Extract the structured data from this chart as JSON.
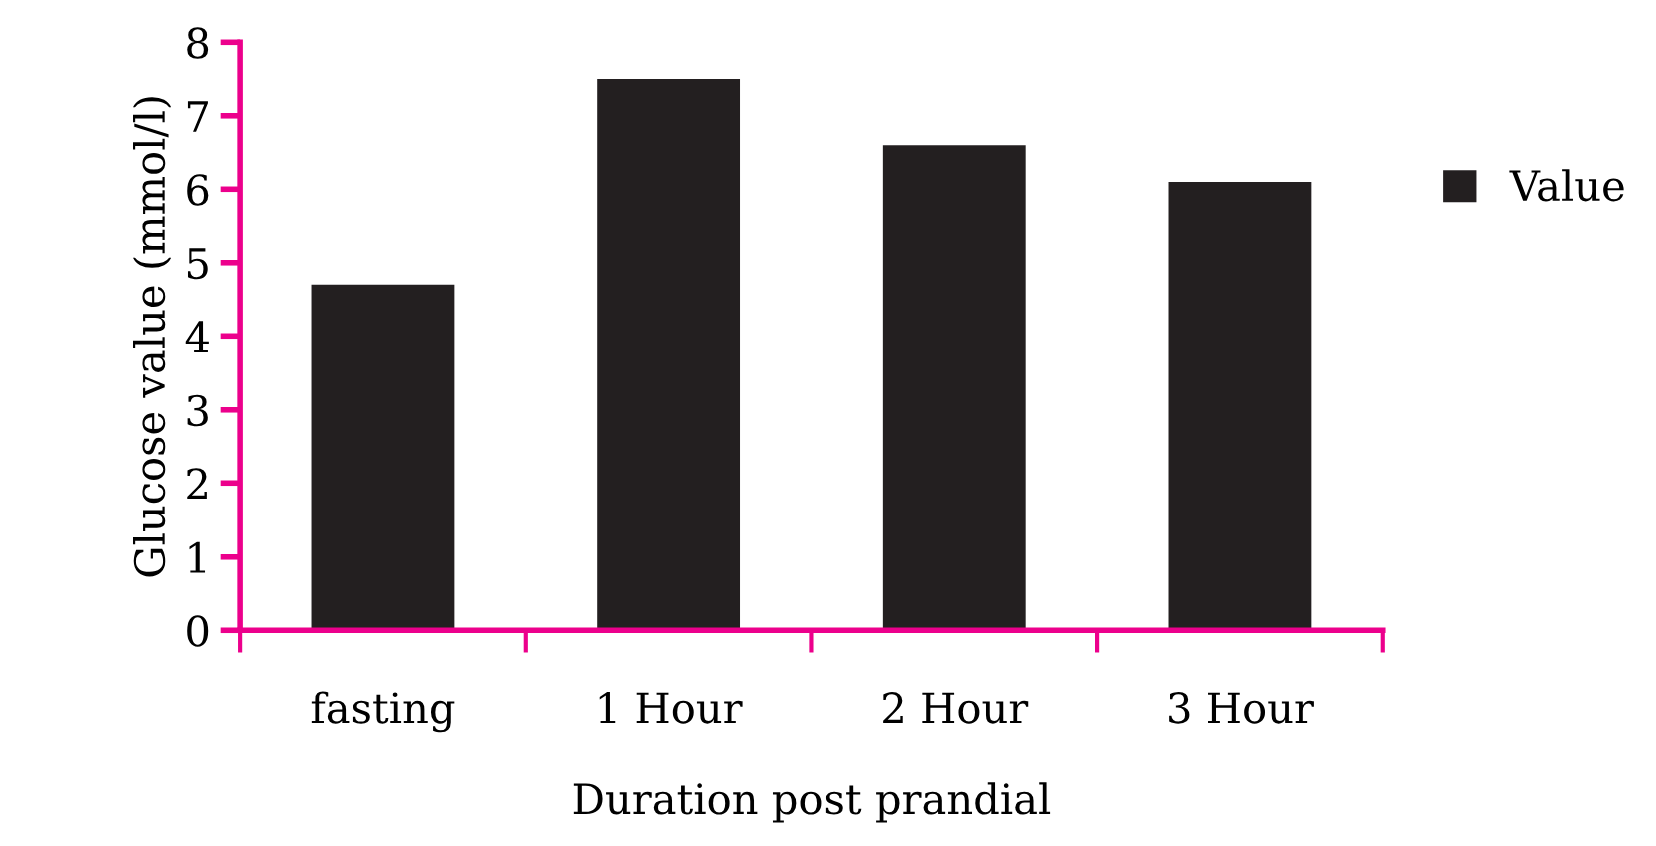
{
  "chart_data": {
    "type": "bar",
    "xlabel": "Duration post prandial",
    "ylabel": "Glucose value (mmol/l)",
    "categories": [
      "fasting",
      "1 Hour",
      "2 Hour",
      "3 Hour"
    ],
    "series": [
      {
        "name": "Value",
        "color": "#231f20",
        "values": [
          4.7,
          7.5,
          6.6,
          6.1
        ]
      }
    ],
    "ylim": [
      0,
      8
    ],
    "yticks": [
      0,
      1,
      2,
      3,
      4,
      5,
      6,
      7,
      8
    ],
    "grid": false,
    "legend": "right"
  }
}
